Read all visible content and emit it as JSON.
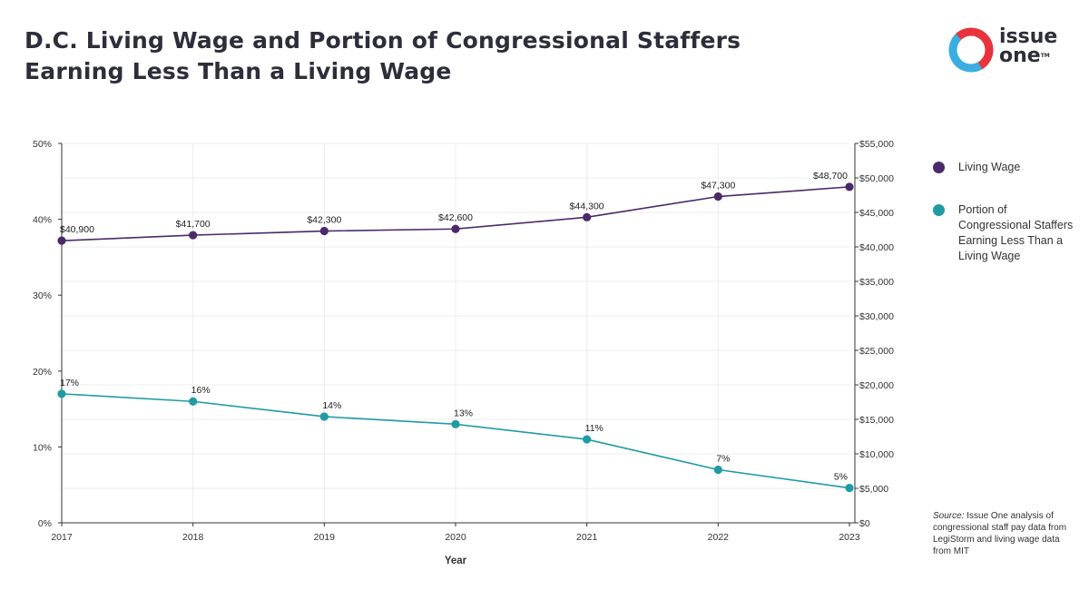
{
  "title_lines": [
    "D.C. Living Wage and Portion of Congressional Staffers",
    "Earning Less Than a Living Wage"
  ],
  "logo": {
    "line1": "issue",
    "line2": "one",
    "tm": "TM",
    "colors": [
      "#e8323c",
      "#3aaee0"
    ]
  },
  "source": {
    "label": "Source:",
    "text": " Issue One analysis of congressional staff pay data from LegiStorm and living wage data from MIT"
  },
  "chart_data": {
    "type": "line",
    "x": [
      "2017",
      "2018",
      "2019",
      "2020",
      "2021",
      "2022",
      "2023"
    ],
    "xlabel": "Year",
    "y_left": {
      "ticks": [
        "0%",
        "10%",
        "20%",
        "30%",
        "40%",
        "50%"
      ],
      "range": [
        0,
        50
      ]
    },
    "y_right": {
      "ticks": [
        "$0",
        "$5,000",
        "$10,000",
        "$15,000",
        "$20,000",
        "$25,000",
        "$30,000",
        "$35,000",
        "$40,000",
        "$45,000",
        "$50,000",
        "$55,000"
      ],
      "range": [
        0,
        55000
      ]
    },
    "grid": true,
    "series": [
      {
        "name": "Living Wage",
        "axis": "right",
        "color": "#4b2a6b",
        "values": [
          40900,
          41700,
          42300,
          42600,
          44300,
          47300,
          48700
        ],
        "labels": [
          "$40,900",
          "$41,700",
          "$42,300",
          "$42,600",
          "$44,300",
          "$47,300",
          "$48,700"
        ]
      },
      {
        "name": "Portion of Congressional Staffers Earning Less Than a Living Wage",
        "axis": "left",
        "color": "#1f9ba3",
        "values": [
          17,
          16,
          14,
          13,
          11,
          7,
          4.6
        ],
        "labels": [
          "17%",
          "16%",
          "14%",
          "13%",
          "11%",
          "7%",
          "5%"
        ]
      }
    ]
  }
}
